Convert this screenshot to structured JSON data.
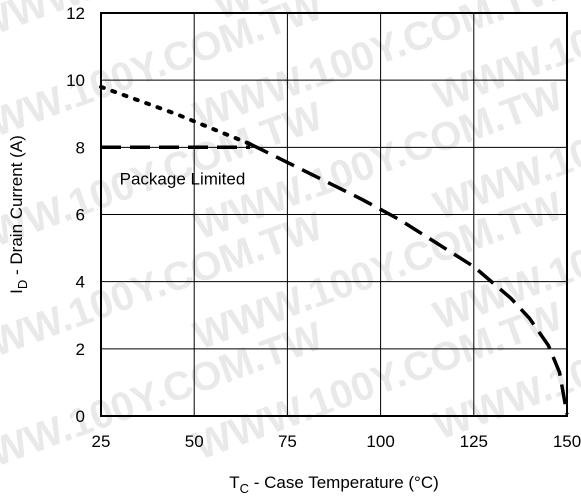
{
  "chart_data": {
    "type": "line",
    "title": "",
    "xlabel": {
      "main": "T",
      "sub": "C",
      "rest": " - Case Temperature (°C)"
    },
    "ylabel": {
      "main": "I",
      "sub": "D",
      "rest": " - Drain Current (A)"
    },
    "xlim": [
      25,
      150
    ],
    "ylim": [
      0,
      12
    ],
    "xticks": [
      "25",
      "50",
      "75",
      "100",
      "125",
      "150"
    ],
    "yticks": [
      "0",
      "2",
      "4",
      "6",
      "8",
      "10",
      "12"
    ],
    "grid": true,
    "series": [
      {
        "style": "dotted",
        "x": [
          25,
          35,
          45,
          55,
          65
        ],
        "y": [
          9.8,
          9.4,
          9.0,
          8.55,
          8.1
        ]
      },
      {
        "style": "dashed",
        "x": [
          25,
          65
        ],
        "y": [
          8.0,
          8.0
        ]
      },
      {
        "style": "dashed",
        "x": [
          65,
          75,
          85,
          95,
          105,
          115,
          125,
          135,
          140,
          145,
          148,
          150
        ],
        "y": [
          8.1,
          7.55,
          7.0,
          6.45,
          5.85,
          5.15,
          4.45,
          3.5,
          2.9,
          2.1,
          1.3,
          0.05
        ]
      }
    ],
    "annotations": [
      {
        "text": "Package Limited",
        "x": 30,
        "y": 6.9
      }
    ]
  },
  "watermark": "WWW.100Y.COM.TW"
}
